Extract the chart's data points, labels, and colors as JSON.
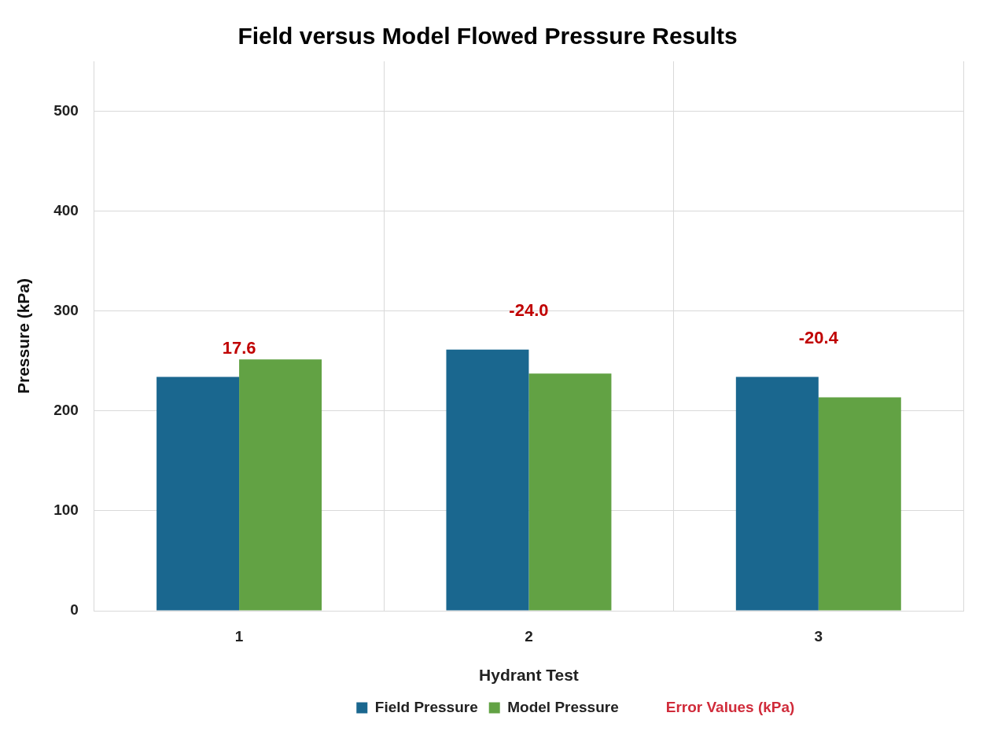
{
  "chart_data": {
    "type": "bar",
    "title": "Field versus Model Flowed Pressure Results",
    "xlabel": "Hydrant Test",
    "ylabel": "Pressure (kPa)",
    "categories": [
      "1",
      "2",
      "3"
    ],
    "series": [
      {
        "name": "Field Pressure",
        "color": "#1a678f",
        "values": [
          234,
          261.4,
          234
        ]
      },
      {
        "name": "Model Pressure",
        "color": "#62a244",
        "values": [
          251.6,
          237.4,
          213.6
        ]
      }
    ],
    "ylim": [
      0,
      550
    ],
    "yticks": [
      0,
      100,
      200,
      300,
      400,
      500
    ],
    "grid": true,
    "legend": "bottom",
    "annotations": [
      "17.6",
      "-24.0",
      "-20.4",
      "Error Values (kPa)"
    ]
  }
}
